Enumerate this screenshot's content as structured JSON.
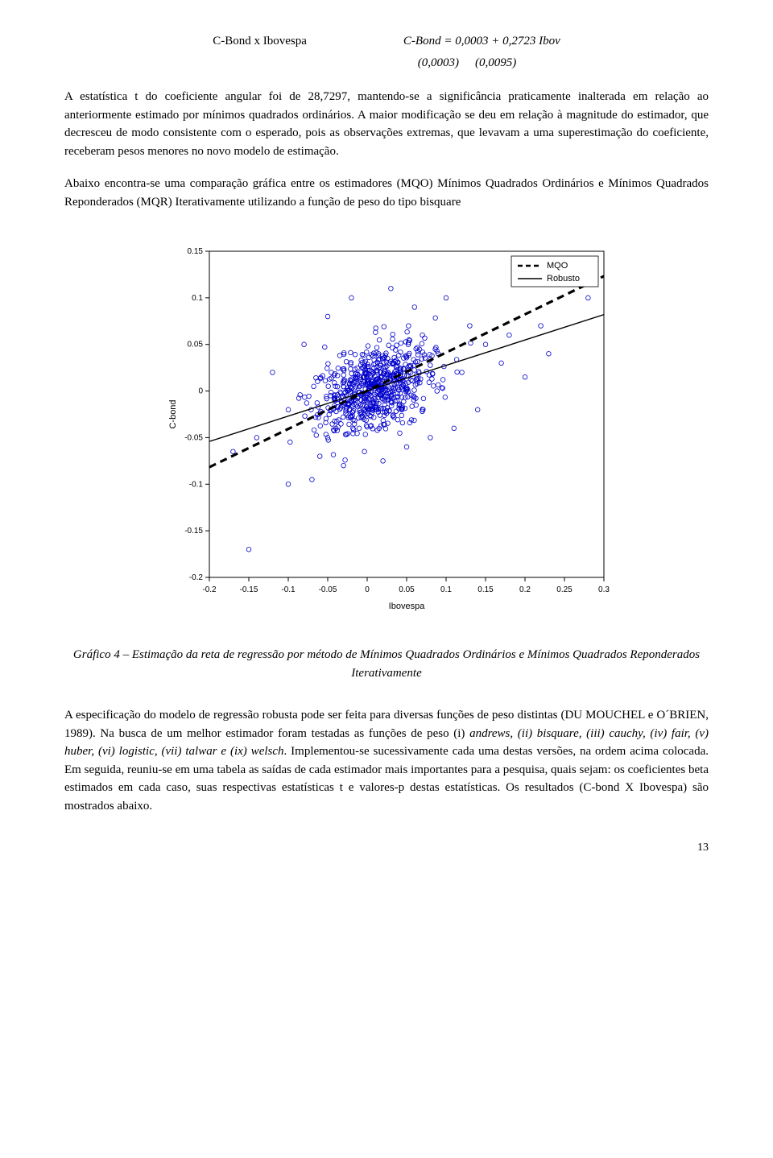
{
  "header": {
    "left": "C-Bond x Ibovespa",
    "right": "C-Bond = 0,0003 + 0,2723 Ibov",
    "sub_left": "(0,0003)",
    "sub_right": "(0,0095)"
  },
  "para1": "A estatística t do coeficiente angular foi de 28,7297, mantendo-se a significância praticamente inalterada em relação ao anteriormente estimado por mínimos quadrados ordinários. A maior modificação se deu em relação à magnitude do estimador, que decresceu de modo consistente com o esperado, pois as observações extremas, que levavam a uma superestimação do coeficiente, receberam pesos menores no novo modelo de estimação.",
  "para2": "Abaixo encontra-se uma comparação gráfica entre os estimadores (MQO) Mínimos Quadrados Ordinários e Mínimos Quadrados Reponderados (MQR) Iterativamente utilizando a função de peso do tipo bisquare",
  "chart": {
    "type": "scatter",
    "xlabel": "Ibovespa",
    "ylabel": "C-bond",
    "xlim": [
      -0.2,
      0.3
    ],
    "ylim": [
      -0.2,
      0.15
    ],
    "xticks": [
      -0.2,
      -0.15,
      -0.1,
      -0.05,
      0,
      0.05,
      0.1,
      0.15,
      0.2,
      0.25,
      0.3
    ],
    "yticks": [
      -0.2,
      -0.15,
      -0.1,
      -0.05,
      0,
      0.05,
      0.1,
      0.15
    ],
    "legend": {
      "items": [
        "MQO",
        "Robusto"
      ],
      "styles": [
        "dash",
        "solid"
      ]
    },
    "lines": {
      "mqo": {
        "slope": 0.41,
        "intercept": 0.0003,
        "dash": true,
        "width": 3.2,
        "color": "#000000"
      },
      "robust": {
        "slope": 0.2723,
        "intercept": 0.0003,
        "dash": false,
        "width": 1.4,
        "color": "#000000"
      }
    },
    "marker_color": "#0000cc",
    "marker_fill": "none",
    "background": "#ffffff",
    "axis_color": "#000000",
    "tick_fontsize": 10,
    "label_fontsize": 11,
    "n_points": 700,
    "cluster_center": [
      0.01,
      0.0
    ],
    "cluster_sd": [
      0.035,
      0.022
    ],
    "outliers": [
      [
        -0.15,
        -0.17
      ],
      [
        -0.17,
        -0.065
      ],
      [
        -0.1,
        -0.1
      ],
      [
        -0.14,
        -0.05
      ],
      [
        -0.07,
        -0.095
      ],
      [
        -0.06,
        -0.07
      ],
      [
        -0.05,
        -0.05
      ],
      [
        -0.03,
        -0.08
      ],
      [
        0.02,
        -0.075
      ],
      [
        0.05,
        -0.06
      ],
      [
        0.08,
        -0.05
      ],
      [
        0.11,
        -0.04
      ],
      [
        0.14,
        -0.02
      ],
      [
        0.17,
        0.03
      ],
      [
        0.2,
        0.015
      ],
      [
        0.23,
        0.04
      ],
      [
        0.28,
        0.1
      ],
      [
        0.1,
        0.1
      ],
      [
        0.13,
        0.07
      ],
      [
        0.15,
        0.05
      ],
      [
        -0.05,
        0.08
      ],
      [
        -0.08,
        0.05
      ],
      [
        0.06,
        0.09
      ],
      [
        0.03,
        0.11
      ],
      [
        -0.02,
        0.1
      ],
      [
        -0.12,
        0.02
      ],
      [
        -0.1,
        -0.02
      ],
      [
        0.07,
        0.06
      ],
      [
        0.09,
        0.04
      ],
      [
        0.12,
        0.02
      ],
      [
        0.18,
        0.06
      ],
      [
        0.22,
        0.07
      ]
    ]
  },
  "caption": "Gráfico 4 – Estimação da reta de regressão por método de Mínimos Quadrados Ordinários e Mínimos Quadrados Reponderados Iterativamente",
  "para3_prefix": "A especificação do modelo de regressão robusta pode ser feita para diversas funções de peso distintas (DU MOUCHEL e O´BRIEN, 1989). Na busca de um melhor estimador foram testadas as funções de peso (i) ",
  "para3_funcs": "andrews, (ii) bisquare, (iii) cauchy, (iv) fair, (v) huber, (vi) logistic, (vii) talwar e (ix) welsch",
  "para3_suffix": ". Implementou-se sucessivamente cada uma destas versões, na ordem acima colocada. Em seguida, reuniu-se em uma tabela as saídas de cada estimador mais importantes para a pesquisa, quais sejam: os coeficientes beta estimados em cada caso, suas respectivas estatísticas t e valores-p destas estatísticas. Os resultados (C-bond X Ibovespa) são mostrados abaixo.",
  "page": "13"
}
